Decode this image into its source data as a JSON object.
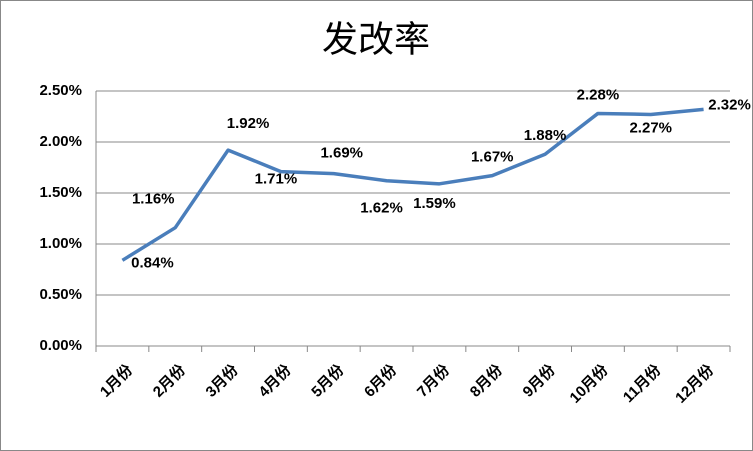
{
  "chart_data": {
    "type": "line",
    "title": "发改率",
    "categories": [
      "1月份",
      "2月份",
      "3月份",
      "4月份",
      "5月份",
      "6月份",
      "7月份",
      "8月份",
      "9月份",
      "10月份",
      "11月份",
      "12月份"
    ],
    "series": [
      {
        "color": "#4a7ebb",
        "values": [
          0.84,
          1.16,
          1.92,
          1.71,
          1.69,
          1.62,
          1.59,
          1.67,
          1.88,
          2.28,
          2.27,
          2.32
        ],
        "value_labels": [
          "0.84%",
          "1.16%",
          "1.92%",
          "1.71%",
          "1.69%",
          "1.62%",
          "1.59%",
          "1.67%",
          "1.88%",
          "2.28%",
          "2.27%",
          "2.32%"
        ]
      }
    ],
    "ylim": [
      0,
      2.5
    ],
    "yticks": [
      {
        "value": 0,
        "label": "0.00%"
      },
      {
        "value": 0.5,
        "label": "0.50%"
      },
      {
        "value": 1,
        "label": "1.00%"
      },
      {
        "value": 1.5,
        "label": "1.50%"
      },
      {
        "value": 2,
        "label": "2.00%"
      },
      {
        "value": 2.5,
        "label": "2.50%"
      }
    ],
    "grid": true
  }
}
